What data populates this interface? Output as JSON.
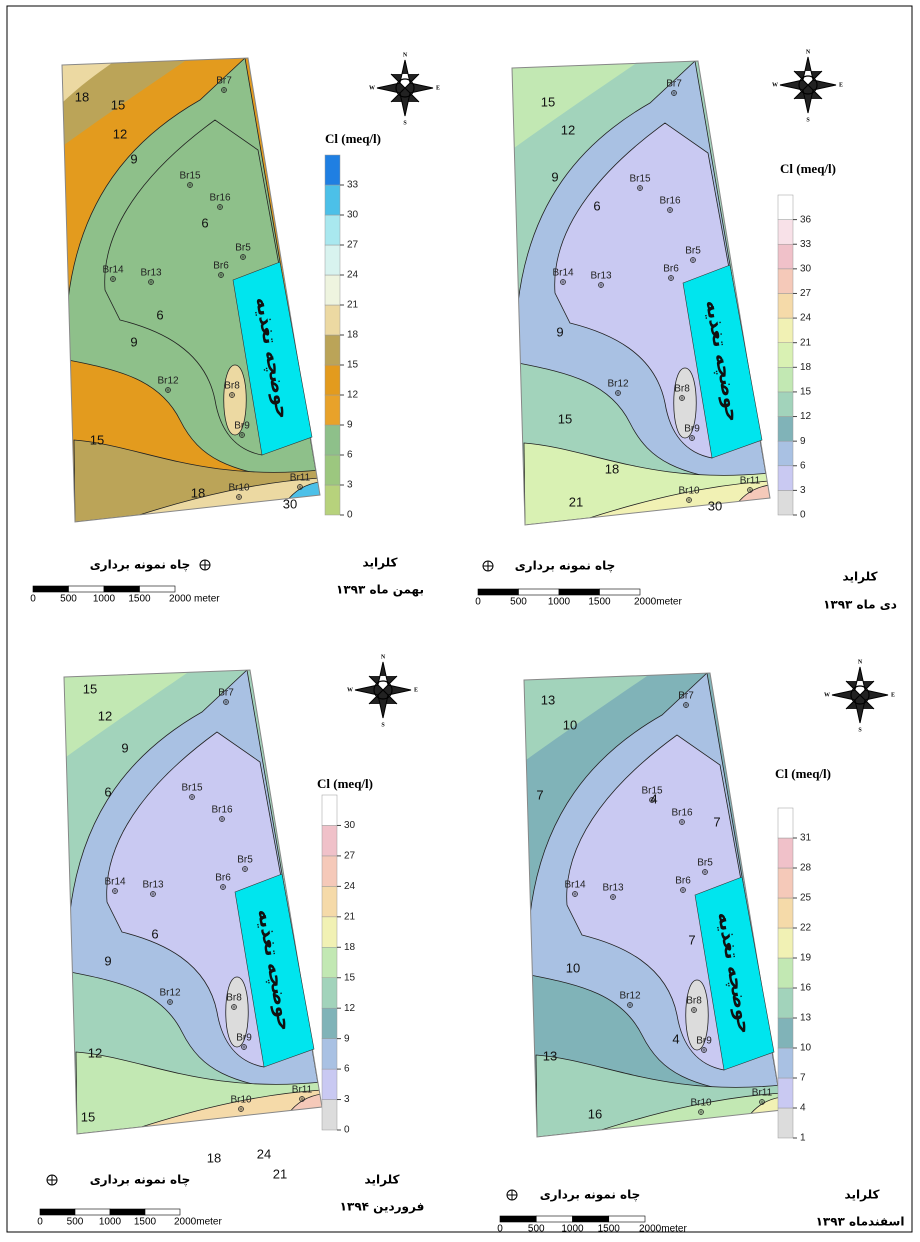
{
  "common": {
    "legend_title": "Cl (meq/l)",
    "basin_label": "حوضچه تغذیه",
    "well_legend": "چاه نمونه برداری",
    "parameter": "کلراید",
    "compass": [
      "N",
      "E",
      "S",
      "W"
    ],
    "wells": [
      "Br7",
      "Br15",
      "Br16",
      "Br5",
      "Br6",
      "Br14",
      "Br13",
      "Br12",
      "Br8",
      "Br9",
      "Br10",
      "Br11"
    ]
  },
  "panels": [
    {
      "date": "بهمن ماه ۱۳۹۳",
      "legend_ticks": [
        0,
        3,
        6,
        9,
        12,
        15,
        18,
        21,
        24,
        27,
        30,
        33
      ],
      "legend_colors": [
        "#b7d27c",
        "#9cc77f",
        "#8ec08a",
        "#e8a22a",
        "#e39b1e",
        "#bba458",
        "#ecd9a2",
        "#eef4df",
        "#d8f3ef",
        "#a9e8ef",
        "#4cc0e8",
        "#1f7fe2"
      ],
      "contour_labels": [
        "18",
        "15",
        "12",
        "9",
        "6",
        "6",
        "9",
        "15",
        "18",
        "30"
      ],
      "scale_labels": [
        "0",
        "500",
        "1000",
        "1500",
        "2000 meter"
      ]
    },
    {
      "date": "دی ماه ۱۳۹۳",
      "legend_ticks": [
        0,
        3,
        6,
        9,
        12,
        15,
        18,
        21,
        24,
        27,
        30,
        33,
        36
      ],
      "legend_colors": [
        "#dcdcdc",
        "#c9c9f2",
        "#a9c1e3",
        "#80b3b8",
        "#a2d3bb",
        "#c2e8b3",
        "#d9f1b3",
        "#f1f1b4",
        "#f5daa9",
        "#f5c9b9",
        "#f0c1c9",
        "#f8e1e8",
        "#ffffff"
      ],
      "contour_labels": [
        "15",
        "12",
        "9",
        "6",
        "9",
        "15",
        "18",
        "21",
        "30"
      ],
      "scale_labels": [
        "0",
        "500",
        "1000",
        "1500",
        "2000meter"
      ]
    },
    {
      "date": "فروردین ۱۳۹۴",
      "legend_ticks": [
        0,
        3,
        6,
        9,
        12,
        15,
        18,
        21,
        24,
        27,
        30
      ],
      "legend_colors": [
        "#dcdcdc",
        "#c9c9f2",
        "#a9c1e3",
        "#80b3b8",
        "#a2d3bb",
        "#c2e8b3",
        "#f1f1b4",
        "#f5daa9",
        "#f5c9b9",
        "#f0c1c9",
        "#ffffff"
      ],
      "contour_labels": [
        "15",
        "12",
        "9",
        "6",
        "6",
        "9",
        "12",
        "15",
        "18",
        "24",
        "21"
      ],
      "scale_labels": [
        "0",
        "500",
        "1000",
        "1500",
        "2000meter"
      ]
    },
    {
      "date": "اسفندماه ۱۳۹۳",
      "legend_ticks": [
        1,
        4,
        7,
        10,
        13,
        16,
        19,
        22,
        25,
        28,
        31
      ],
      "legend_colors": [
        "#dcdcdc",
        "#c9c9f2",
        "#a9c1e3",
        "#80b3b8",
        "#a2d3bb",
        "#c2e8b3",
        "#f1f1b4",
        "#f5daa9",
        "#f5c9b9",
        "#f0c1c9",
        "#ffffff"
      ],
      "contour_labels": [
        "13",
        "10",
        "7",
        "4",
        "7",
        "7",
        "10",
        "4",
        "13",
        "16"
      ],
      "scale_labels": [
        "0",
        "500",
        "1000",
        "1500",
        "2000meter"
      ]
    }
  ]
}
